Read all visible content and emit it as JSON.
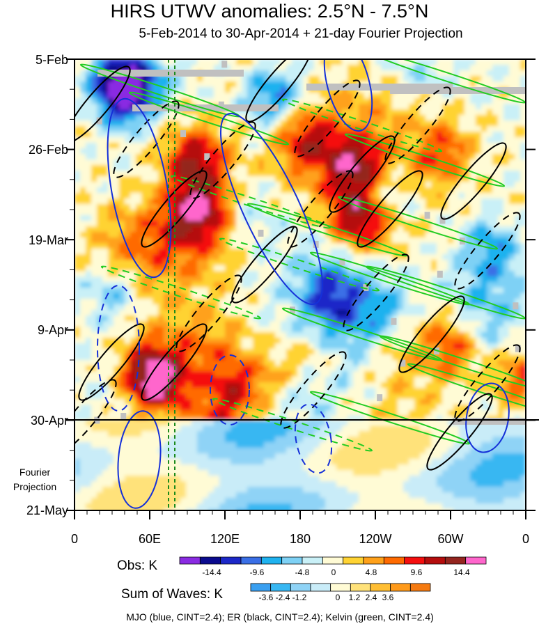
{
  "chart_data": {
    "type": "heatmap",
    "title": "HIRS UTWV anomalies: 2.5°N - 7.5°N",
    "subtitle": "5-Feb-2014 to 30-Apr-2014 + 21-day Fourier Projection",
    "x_axis": {
      "ticks": [
        "0",
        "60E",
        "120E",
        "180",
        "120W",
        "60W",
        "0"
      ],
      "xlim": [
        0,
        360
      ]
    },
    "y_axis": {
      "ticks": [
        "5-Feb",
        "26-Feb",
        "19-Mar",
        "9-Apr",
        "30-Apr",
        "21-May"
      ],
      "day_offsets": [
        0,
        21,
        42,
        63,
        84,
        105
      ]
    },
    "projection_label": "Fourier\nProjection",
    "observed_end": "30-Apr",
    "obs_colorbar": {
      "label": "Obs: K",
      "tick_labels": [
        "-14.4",
        "-9.6",
        "-4.8",
        "0",
        "4.8",
        "9.6",
        "14.4"
      ],
      "colors": [
        "#8a2be2",
        "#0b0b8f",
        "#1c28c8",
        "#3a6fe6",
        "#1fb2ef",
        "#7ed1f5",
        "#c9f0f7",
        "#fffbd5",
        "#ffd333",
        "#ffa11a",
        "#ff6a00",
        "#f50e0e",
        "#b50d0d",
        "#94251f",
        "#ff66cc"
      ]
    },
    "waves_colorbar": {
      "label": "Sum of Waves: K",
      "tick_labels": [
        "-3.6",
        "-2.4",
        "-1.2",
        "0",
        "1.2",
        "2.4",
        "3.6"
      ],
      "colors": [
        "#3a9ff0",
        "#38b7f2",
        "#8fd3f6",
        "#c9ecf8",
        "#fffbd5",
        "#ffe27a",
        "#ffbe33",
        "#ff9a1a",
        "#f57a10"
      ]
    },
    "reference_lines_lon": [
      75,
      80
    ],
    "footer": "MJO (blue, CINT=2.4); ER (black, CINT=2.4); Kelvin (green, CINT=2.4)",
    "contours": [
      {
        "wave": "MJO",
        "color": "#1530d8",
        "style": "solid"
      },
      {
        "wave": "ER",
        "color": "#000000",
        "style": "solid/dashed"
      },
      {
        "wave": "Kelvin",
        "color": "#22cc22",
        "style": "solid/dashed"
      }
    ]
  }
}
